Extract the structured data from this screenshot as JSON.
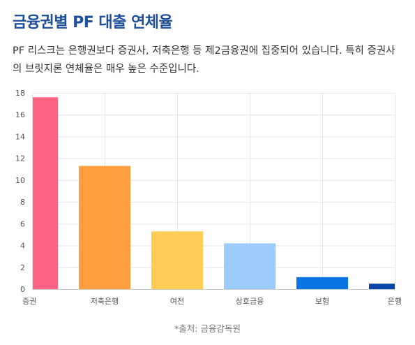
{
  "header": {
    "title": "금융권별 PF 대출 연체율",
    "description": "PF 리스크는 은행권보다 증권사, 저축은행 등 제2금융권에 집중되어 있습니다. 특히 증권사의 브릿지론 연체율은 매우 높은 수준입니다."
  },
  "footer": {
    "source": "*출처: 금융감독원"
  },
  "chart_data": {
    "type": "bar",
    "categories": [
      "증권",
      "저축은행",
      "여전",
      "상호금융",
      "보험",
      "은행"
    ],
    "values": [
      17.6,
      11.3,
      5.3,
      4.2,
      1.1,
      0.5
    ],
    "colors": [
      "#ff6384",
      "#ff9f40",
      "#ffcd56",
      "#9ccbfb",
      "#0a74e3",
      "#0a45a8"
    ],
    "title": "",
    "xlabel": "",
    "ylabel": "",
    "ylim": [
      0,
      18
    ],
    "yticks": [
      0,
      2,
      4,
      6,
      8,
      10,
      12,
      14,
      16,
      18
    ],
    "grid": true,
    "legend": "none"
  }
}
